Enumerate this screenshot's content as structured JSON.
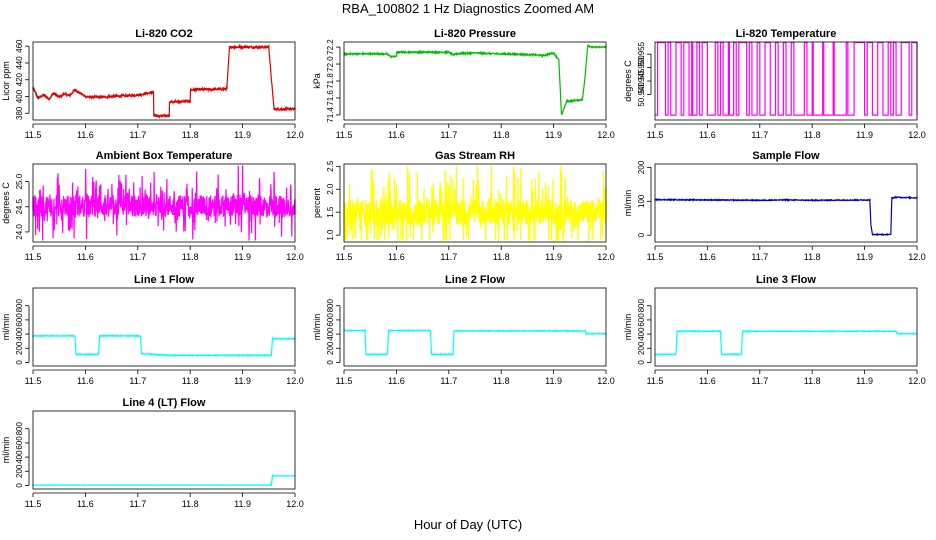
{
  "title": "RBA_100802  1 Hz Diagnostics Zoomed AM",
  "xlabel": "Hour of Day (UTC)",
  "colors": {
    "red": "#dd0000",
    "green": "#00bb00",
    "magenta": "#ff00ff",
    "yellow": "#ffff00",
    "blue": "#0000cc",
    "cyan": "#00ffff"
  },
  "chart_data": [
    {
      "type": "line",
      "title": "Li-820 CO2",
      "ylabel": "Licor ppm",
      "color": "#dd0000",
      "xlim": [
        11.5,
        12.0
      ],
      "ylim": [
        372,
        465
      ],
      "xticks": [
        11.5,
        11.6,
        11.7,
        11.8,
        11.9,
        12.0
      ],
      "yticks": [
        380,
        400,
        420,
        440,
        460
      ],
      "noise": 1.5,
      "spikes": 0,
      "series": [
        {
          "x": [
            11.5,
            11.51,
            11.52,
            11.53,
            11.54,
            11.55,
            11.56,
            11.57,
            11.58,
            11.59,
            11.6,
            11.62,
            11.65,
            11.68,
            11.7,
            11.72,
            11.73,
            11.73,
            11.76,
            11.76,
            11.8,
            11.8,
            11.87,
            11.875,
            11.95,
            11.955,
            11.96,
            12.0
          ],
          "y": [
            410,
            398,
            402,
            397,
            404,
            399,
            403,
            401,
            408,
            404,
            400,
            399,
            400,
            401,
            402,
            404,
            405,
            377,
            377,
            394,
            394,
            408,
            409,
            459,
            459,
            420,
            385,
            385
          ]
        }
      ]
    },
    {
      "type": "line",
      "title": "Li-820 Pressure",
      "ylabel": "kPa",
      "color": "#00bb00",
      "xlim": [
        11.5,
        12.0
      ],
      "ylim": [
        71.34,
        72.26
      ],
      "xticks": [
        11.5,
        11.6,
        11.7,
        11.8,
        11.9,
        12.0
      ],
      "yticks": [
        71.4,
        71.6,
        71.8,
        72.0,
        72.2
      ],
      "noise": 0.008,
      "spikes": 0,
      "series": [
        {
          "x": [
            11.5,
            11.58,
            11.59,
            11.6,
            11.6,
            11.7,
            11.71,
            11.71,
            11.75,
            11.8,
            11.86,
            11.88,
            11.9,
            11.91,
            11.915,
            11.925,
            11.94,
            11.955,
            11.96,
            11.965,
            11.97,
            12.0
          ],
          "y": [
            72.12,
            72.12,
            72.09,
            72.09,
            72.14,
            72.14,
            72.1,
            72.12,
            72.13,
            72.12,
            72.11,
            72.1,
            72.13,
            72.05,
            71.4,
            71.56,
            71.57,
            71.58,
            71.85,
            72.22,
            72.2,
            72.2
          ]
        }
      ]
    },
    {
      "type": "line",
      "title": "Li-820 Temperature",
      "ylabel": "degrees C",
      "color": "#ff00ff",
      "xlim": [
        11.5,
        12.0
      ],
      "ylim": [
        50.9305,
        50.9595
      ],
      "xticks": [
        11.5,
        11.6,
        11.7,
        11.8,
        11.9,
        12.0
      ],
      "yticks": [
        50.94,
        50.945,
        50.95,
        50.955
      ],
      "noise": 0,
      "spikes": 0,
      "switching": {
        "low": 50.9323,
        "high": 50.9593,
        "segments": [
          [
            11.505,
            11.52
          ],
          [
            11.525,
            11.53
          ],
          [
            11.54,
            11.55
          ],
          [
            11.555,
            11.565
          ],
          [
            11.57,
            11.572
          ],
          [
            11.58,
            11.585
          ],
          [
            11.59,
            11.6
          ],
          [
            11.615,
            11.62
          ],
          [
            11.625,
            11.63
          ],
          [
            11.64,
            11.642
          ],
          [
            11.65,
            11.655
          ],
          [
            11.66,
            11.675
          ],
          [
            11.68,
            11.685
          ],
          [
            11.695,
            11.7
          ],
          [
            11.71,
            11.72
          ],
          [
            11.73,
            11.735
          ],
          [
            11.745,
            11.75
          ],
          [
            11.76,
            11.765
          ],
          [
            11.785,
            11.79
          ],
          [
            11.8,
            11.802
          ],
          [
            11.82,
            11.822
          ],
          [
            11.84,
            11.842
          ],
          [
            11.865,
            11.868
          ],
          [
            11.88,
            11.9
          ],
          [
            11.905,
            11.915
          ],
          [
            11.925,
            11.935
          ],
          [
            11.945,
            11.95
          ],
          [
            11.955,
            11.96
          ],
          [
            11.97,
            11.985
          ],
          [
            11.99,
            12.0
          ]
        ]
      },
      "series": []
    },
    {
      "type": "line",
      "title": "Ambient Box Temperature",
      "ylabel": "degrees C",
      "color": "#ff00ff",
      "xlim": [
        11.5,
        12.0
      ],
      "ylim": [
        23.8,
        25.35
      ],
      "xticks": [
        11.5,
        11.6,
        11.7,
        11.8,
        11.9,
        12.0
      ],
      "yticks": [
        24.0,
        24.5,
        25.0
      ],
      "noise": 0.22,
      "spikes": 0.6,
      "series": [
        {
          "x": [
            11.5,
            12.0
          ],
          "y": [
            24.52,
            24.52
          ]
        }
      ]
    },
    {
      "type": "line",
      "title": "Gas Stream RH",
      "ylabel": "percent",
      "color": "#ffff00",
      "xlim": [
        11.5,
        12.0
      ],
      "ylim": [
        0.85,
        2.55
      ],
      "xticks": [
        11.5,
        11.6,
        11.7,
        11.8,
        11.9,
        12.0
      ],
      "yticks": [
        1.0,
        1.5,
        2.0,
        2.5
      ],
      "noise": 0.28,
      "spikes": 0.7,
      "series": [
        {
          "x": [
            11.5,
            12.0
          ],
          "y": [
            1.5,
            1.5
          ]
        }
      ]
    },
    {
      "type": "line",
      "title": "Sample Flow",
      "ylabel": "ml/min",
      "color": "#0000cc",
      "xlim": [
        11.5,
        12.0
      ],
      "ylim": [
        -20,
        210
      ],
      "xticks": [
        11.5,
        11.6,
        11.7,
        11.8,
        11.9,
        12.0
      ],
      "yticks": [
        0,
        100,
        200
      ],
      "noise": 1.2,
      "spikes": 0,
      "series": [
        {
          "x": [
            11.5,
            11.6,
            11.7,
            11.75,
            11.8,
            11.91,
            11.912,
            11.915,
            11.95,
            11.952,
            11.96,
            12.0
          ],
          "y": [
            105,
            104,
            103,
            104,
            103,
            104,
            30,
            2,
            2,
            110,
            112,
            110
          ]
        }
      ]
    },
    {
      "type": "line",
      "title": "Line 1 Flow",
      "ylabel": "ml/min",
      "color": "#00ffff",
      "xlim": [
        11.5,
        12.0
      ],
      "ylim": [
        -50,
        1050
      ],
      "xticks": [
        11.5,
        11.6,
        11.7,
        11.8,
        11.9,
        12.0
      ],
      "yticks": [
        0,
        200,
        400,
        600,
        800
      ],
      "noise": 6,
      "spikes": 0,
      "series": [
        {
          "x": [
            11.5,
            11.58,
            11.582,
            11.625,
            11.627,
            11.705,
            11.707,
            11.75,
            11.76,
            11.955,
            11.957,
            12.0
          ],
          "y": [
            375,
            375,
            115,
            115,
            375,
            375,
            125,
            105,
            100,
            100,
            335,
            335
          ]
        }
      ]
    },
    {
      "type": "line",
      "title": "Line 2 Flow",
      "ylabel": "ml/min",
      "color": "#00ffff",
      "xlim": [
        11.5,
        12.0
      ],
      "ylim": [
        -50,
        1050
      ],
      "xticks": [
        11.5,
        11.6,
        11.7,
        11.8,
        11.9,
        12.0
      ],
      "yticks": [
        0,
        200,
        400,
        600,
        800
      ],
      "noise": 5,
      "spikes": 0,
      "series": [
        {
          "x": [
            11.5,
            11.54,
            11.542,
            11.583,
            11.585,
            11.665,
            11.667,
            11.708,
            11.71,
            11.96,
            11.962,
            12.0
          ],
          "y": [
            450,
            450,
            115,
            115,
            450,
            450,
            115,
            115,
            445,
            445,
            405,
            405
          ]
        }
      ]
    },
    {
      "type": "line",
      "title": "Line 3 Flow",
      "ylabel": "ml/min",
      "color": "#00ffff",
      "xlim": [
        11.5,
        12.0
      ],
      "ylim": [
        -50,
        1050
      ],
      "xticks": [
        11.5,
        11.6,
        11.7,
        11.8,
        11.9,
        12.0
      ],
      "yticks": [
        0,
        200,
        400,
        600,
        800
      ],
      "noise": 5,
      "spikes": 0,
      "series": [
        {
          "x": [
            11.5,
            11.54,
            11.542,
            11.625,
            11.627,
            11.665,
            11.667,
            11.96,
            11.962,
            12.0
          ],
          "y": [
            115,
            115,
            440,
            440,
            115,
            115,
            440,
            440,
            405,
            405
          ]
        }
      ]
    },
    {
      "type": "line",
      "title": "Line 4 (LT) Flow",
      "ylabel": "ml/min",
      "color": "#00ffff",
      "xlim": [
        11.5,
        12.0
      ],
      "ylim": [
        -50,
        1050
      ],
      "xticks": [
        11.5,
        11.6,
        11.7,
        11.8,
        11.9,
        12.0
      ],
      "yticks": [
        0,
        200,
        400,
        600,
        800
      ],
      "noise": 2,
      "spikes": 0,
      "series": [
        {
          "x": [
            11.5,
            11.955,
            11.957,
            11.96,
            12.0
          ],
          "y": [
            5,
            5,
            140,
            135,
            135
          ]
        }
      ]
    }
  ]
}
